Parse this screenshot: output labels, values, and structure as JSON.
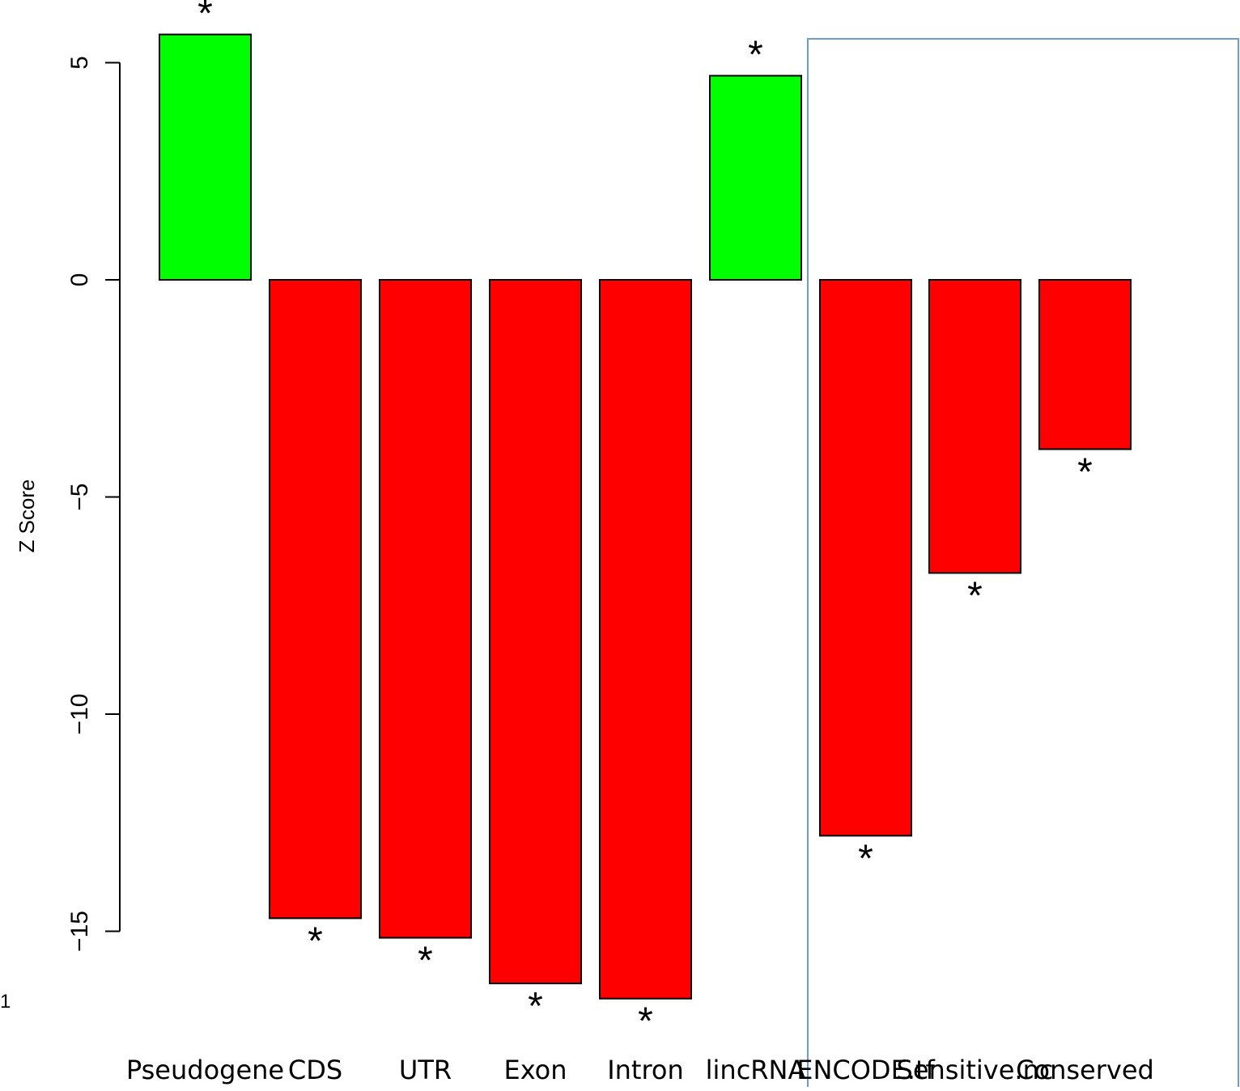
{
  "page_number": "1",
  "chart_data": {
    "type": "bar",
    "title": "",
    "xlabel": "",
    "ylabel": "Z Score",
    "ylim": [
      -16.5,
      5.7
    ],
    "yticks": [
      5,
      0,
      -5,
      -10,
      -15
    ],
    "ytick_labels": [
      "5",
      "0",
      "−5",
      "−10",
      "−15"
    ],
    "categories": [
      "Pseudogene",
      "CDS",
      "UTR",
      "Exon",
      "Intron",
      "lincRNA",
      "ENCODE.tf",
      "Sensitive.nc",
      "Conserved"
    ],
    "values": [
      5.65,
      -14.7,
      -15.15,
      -16.2,
      -16.55,
      4.7,
      -12.8,
      -6.75,
      -3.9
    ],
    "significance": [
      "*",
      "*",
      "*",
      "*",
      "*",
      "*",
      "*",
      "*",
      "*"
    ],
    "colors": {
      "positive": "#00ff00",
      "negative": "#ff0000",
      "bar_outline": "#000000",
      "highlight_box": "#6b9bd2"
    },
    "highlight_box_categories": [
      "ENCODE.tf",
      "Sensitive.nc",
      "Conserved"
    ]
  }
}
